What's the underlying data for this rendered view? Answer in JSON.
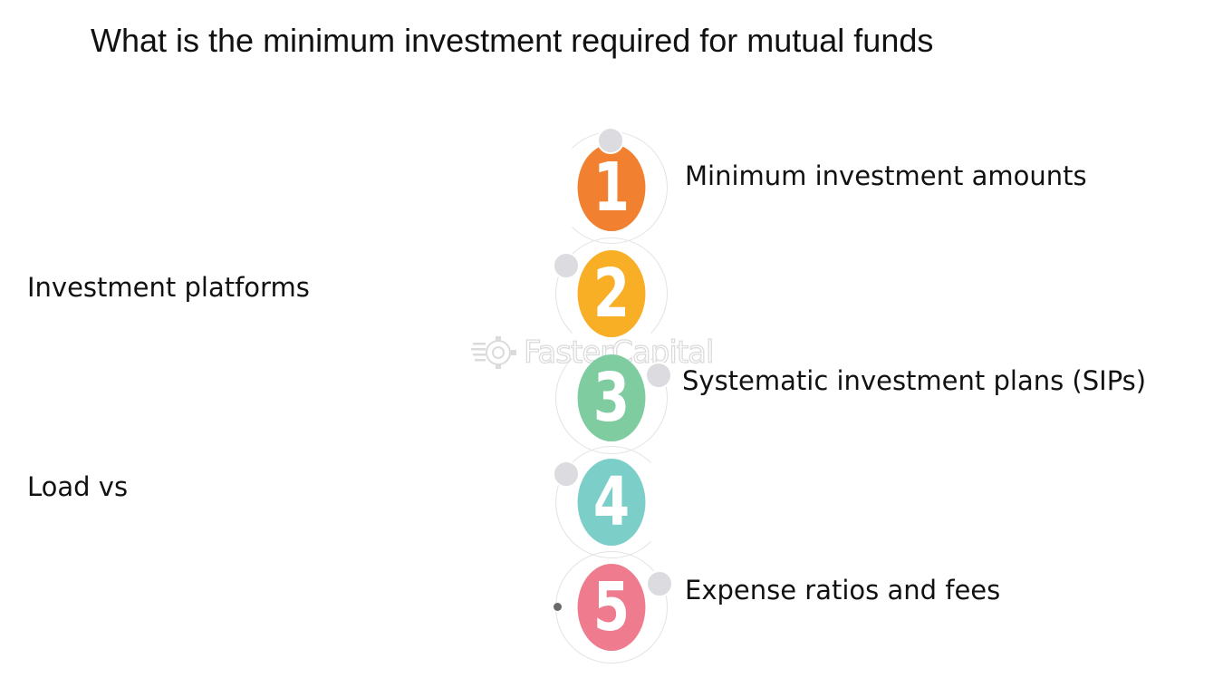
{
  "title": "What is the minimum investment required for mutual funds",
  "watermark": "FasterCapital",
  "steps": [
    {
      "number": "1",
      "label": "Minimum investment amounts",
      "color": "#f18130"
    },
    {
      "number": "2",
      "label": "Investment platforms",
      "color": "#f8ae25"
    },
    {
      "number": "3",
      "label": "Systematic investment plans (SIPs)",
      "color": "#7fcca1"
    },
    {
      "number": "4",
      "label": "Load vs",
      "color": "#7ccec8"
    },
    {
      "number": "5",
      "label": "Expense ratios and fees",
      "color": "#ee7b8e"
    }
  ]
}
